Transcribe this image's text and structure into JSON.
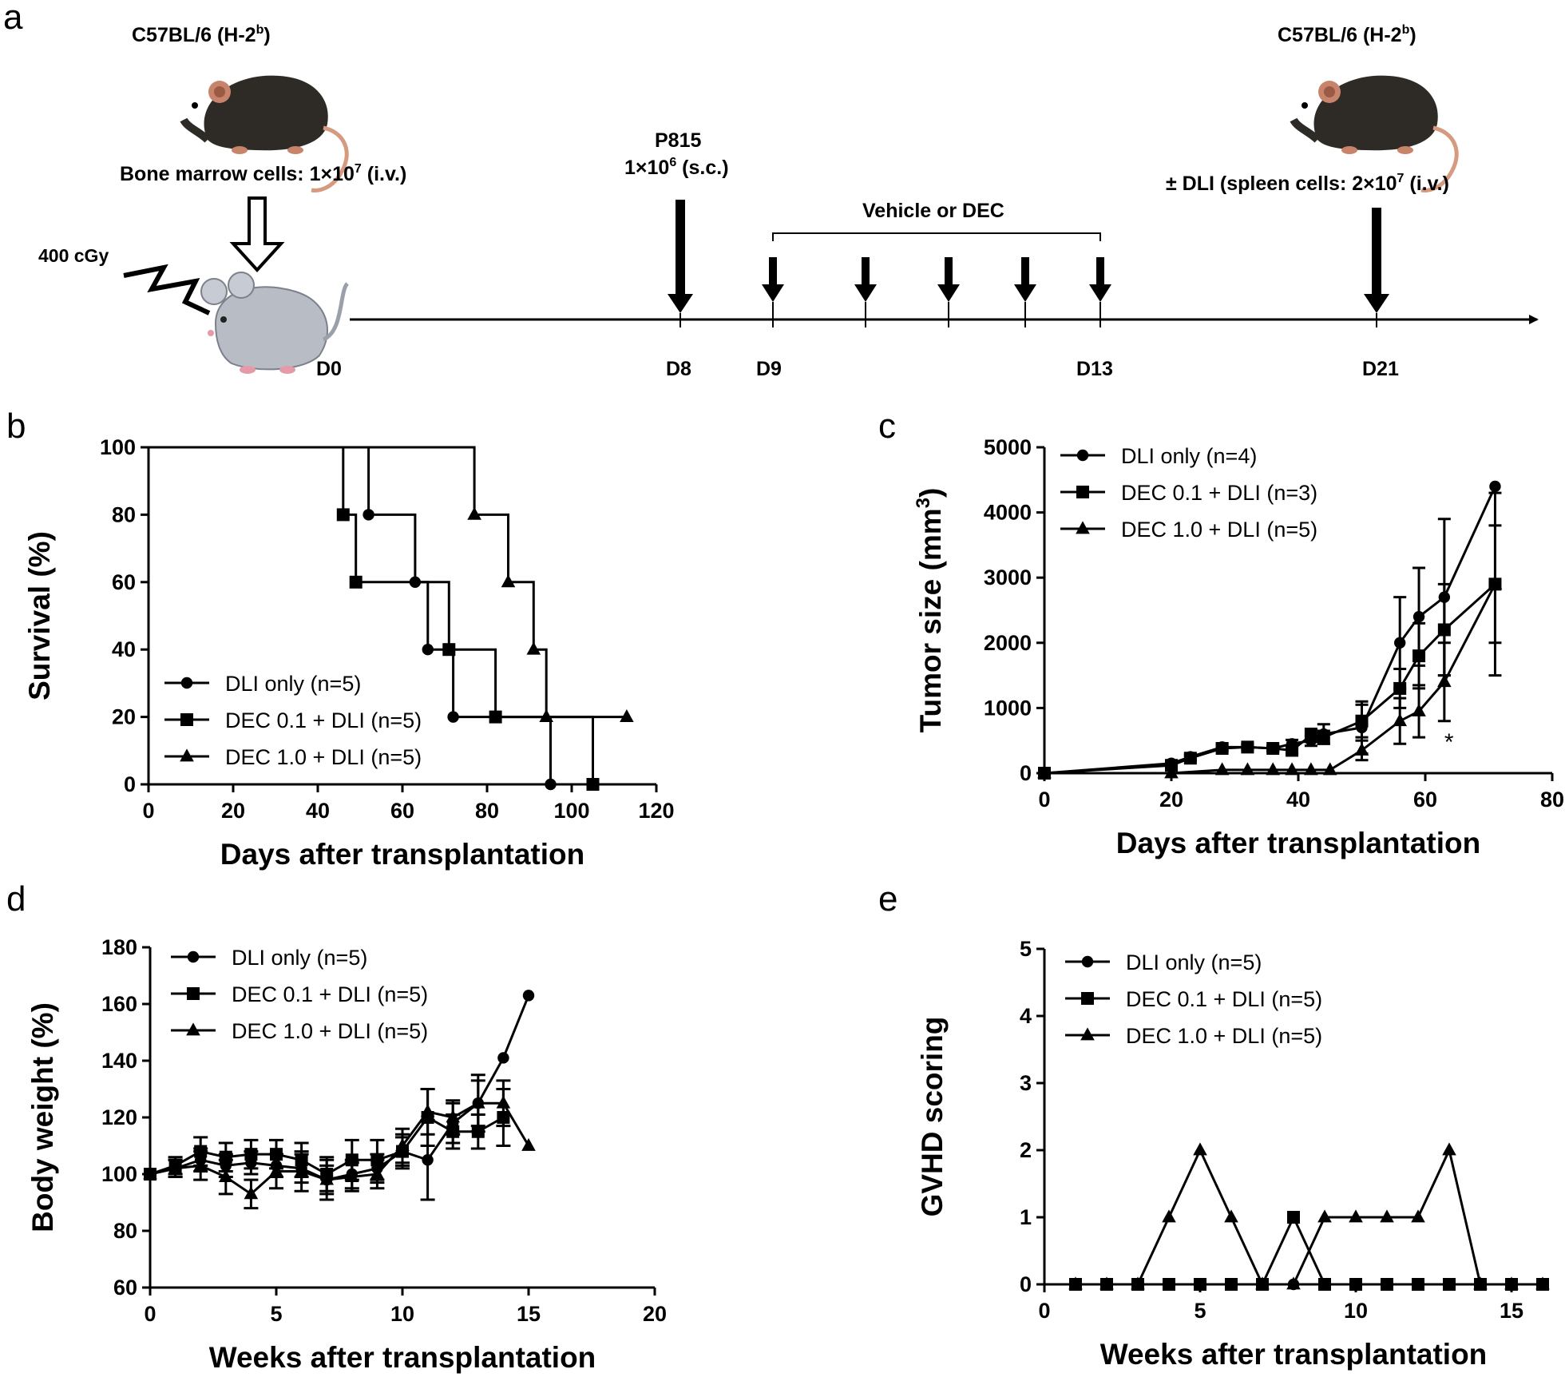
{
  "panel_labels": {
    "a": "a",
    "b": "b",
    "c": "c",
    "d": "d",
    "e": "e"
  },
  "schematic": {
    "donor_left_title": "C57BL/6 (H-2",
    "donor_left_sup": "b",
    "donor_left_close": ")",
    "bm_text_1": "Bone marrow cells: 1×10",
    "bm_sup": "7",
    "bm_text_2": " (i.v.)",
    "irradiation": "400 cGy",
    "p815_title": "P815",
    "p815_dose_1": "1×10",
    "p815_sup": "6",
    "p815_dose_2": " (s.c.)",
    "treatment": "Vehicle or DEC",
    "donor_right_title": "C57BL/6 (H-2",
    "donor_right_sup": "b",
    "donor_right_close": ")",
    "dli_text_1": "± DLI (spleen cells: 2×10",
    "dli_sup": "7",
    "dli_text_2": " (i.v.)",
    "days": [
      "D0",
      "D8",
      "D9",
      "D13",
      "D21"
    ]
  },
  "chart_data": [
    {
      "panel": "b",
      "type": "line",
      "subtype": "kaplan-meier",
      "xlabel": "Days after transplantation",
      "ylabel": "Survival (%)",
      "xlim": [
        0,
        120
      ],
      "ylim": [
        0,
        100
      ],
      "xticks": [
        0,
        20,
        40,
        60,
        80,
        100,
        120
      ],
      "yticks": [
        0,
        20,
        40,
        60,
        80,
        100
      ],
      "legend": [
        "DLI only (n=5)",
        "DEC 0.1 + DLI (n=5)",
        "DEC 1.0 + DLI (n=5)"
      ],
      "series": [
        {
          "name": "DLI only (n=5)",
          "marker": "circle",
          "steps": [
            [
              0,
              100
            ],
            [
              52,
              80
            ],
            [
              63,
              60
            ],
            [
              66,
              40
            ],
            [
              72,
              20
            ],
            [
              95,
              0
            ]
          ],
          "markers": [
            [
              52,
              80
            ],
            [
              63,
              60
            ],
            [
              66,
              40
            ],
            [
              72,
              20
            ],
            [
              95,
              0
            ]
          ]
        },
        {
          "name": "DEC 0.1 + DLI (n=5)",
          "marker": "square",
          "steps": [
            [
              0,
              100
            ],
            [
              46,
              80
            ],
            [
              49,
              60
            ],
            [
              71,
              40
            ],
            [
              82,
              20
            ],
            [
              105,
              0
            ]
          ],
          "markers": [
            [
              46,
              80
            ],
            [
              49,
              60
            ],
            [
              71,
              40
            ],
            [
              82,
              20
            ],
            [
              105,
              0
            ]
          ]
        },
        {
          "name": "DEC 1.0 + DLI (n=5)",
          "marker": "triangle",
          "steps": [
            [
              0,
              100
            ],
            [
              77,
              80
            ],
            [
              85,
              60
            ],
            [
              91,
              40
            ],
            [
              94,
              20
            ],
            [
              113,
              20
            ]
          ],
          "markers": [
            [
              77,
              80
            ],
            [
              85,
              60
            ],
            [
              91,
              40
            ],
            [
              94,
              20
            ],
            [
              113,
              20
            ]
          ]
        }
      ]
    },
    {
      "panel": "c",
      "type": "line",
      "xlabel": "Days after transplantation",
      "ylabel": "Tumor size (mm",
      "ylabel_sup": "3",
      "ylabel_close": ")",
      "xlim": [
        0,
        80
      ],
      "ylim": [
        0,
        5000
      ],
      "xticks": [
        0,
        20,
        40,
        60,
        80
      ],
      "yticks": [
        0,
        1000,
        2000,
        3000,
        4000,
        5000
      ],
      "legend": [
        "DLI only (n=4)",
        "DEC 0.1 + DLI (n=3)",
        "DEC 1.0 + DLI (n=5)"
      ],
      "annotation": {
        "text": "*",
        "x": 62,
        "y": 600
      },
      "series": [
        {
          "name": "DLI only (n=4)",
          "marker": "circle",
          "x": [
            0,
            20,
            23,
            28,
            32,
            36,
            39,
            42,
            44,
            50,
            56,
            59,
            63,
            71
          ],
          "y": [
            0,
            150,
            250,
            400,
            400,
            380,
            450,
            500,
            600,
            700,
            2000,
            2400,
            2700,
            4400
          ],
          "err": [
            0,
            30,
            40,
            50,
            40,
            40,
            60,
            80,
            150,
            400,
            700,
            750,
            1200,
            0
          ]
        },
        {
          "name": "DEC 0.1 + DLI (n=3)",
          "marker": "square",
          "x": [
            0,
            20,
            23,
            28,
            32,
            36,
            39,
            42,
            44,
            50,
            56,
            59,
            63,
            71
          ],
          "y": [
            0,
            120,
            230,
            380,
            400,
            380,
            350,
            580,
            550,
            800,
            1300,
            1800,
            2200,
            2900
          ],
          "err": [
            0,
            30,
            40,
            40,
            40,
            40,
            40,
            100,
            100,
            250,
            300,
            500,
            700,
            900
          ]
        },
        {
          "name": "DEC 1.0 + DLI (n=5)",
          "marker": "triangle",
          "x": [
            0,
            20,
            28,
            32,
            36,
            39,
            42,
            45,
            50,
            56,
            59,
            63,
            71
          ],
          "y": [
            0,
            0,
            50,
            50,
            50,
            50,
            50,
            50,
            350,
            800,
            950,
            1400,
            2900
          ],
          "err": [
            0,
            0,
            0,
            0,
            0,
            0,
            0,
            0,
            150,
            350,
            400,
            600,
            1400
          ]
        }
      ]
    },
    {
      "panel": "d",
      "type": "line",
      "xlabel": "Weeks after transplantation",
      "ylabel": "Body weight (%)",
      "xlim": [
        0,
        20
      ],
      "ylim": [
        60,
        180
      ],
      "xticks": [
        0,
        5,
        10,
        15,
        20
      ],
      "yticks": [
        60,
        80,
        100,
        120,
        140,
        160,
        180
      ],
      "legend": [
        "DLI only (n=5)",
        "DEC 0.1 + DLI (n=5)",
        "DEC 1.0 + DLI (n=5)"
      ],
      "series": [
        {
          "name": "DLI only (n=5)",
          "marker": "circle",
          "x": [
            0,
            1,
            2,
            3,
            4,
            5,
            6,
            7,
            8,
            9,
            10,
            11,
            12,
            13,
            14,
            15
          ],
          "y": [
            100,
            102,
            105,
            103,
            104,
            103,
            102,
            98,
            100,
            102,
            108,
            105,
            118,
            125,
            141,
            163
          ],
          "err": [
            0,
            3,
            4,
            4,
            4,
            4,
            5,
            5,
            5,
            5,
            5,
            14,
            7,
            8,
            0,
            0
          ]
        },
        {
          "name": "DEC 0.1 + DLI (n=5)",
          "marker": "square",
          "x": [
            0,
            1,
            2,
            3,
            4,
            5,
            6,
            7,
            8,
            9,
            10,
            11,
            12,
            13,
            14
          ],
          "y": [
            100,
            103,
            108,
            106,
            107,
            107,
            105,
            100,
            105,
            105,
            108,
            120,
            115,
            115,
            120
          ],
          "err": [
            0,
            3,
            5,
            5,
            5,
            5,
            6,
            6,
            7,
            7,
            6,
            10,
            6,
            6,
            10
          ]
        },
        {
          "name": "DEC 1.0 + DLI (n=5)",
          "marker": "triangle",
          "x": [
            0,
            1,
            2,
            3,
            4,
            5,
            6,
            7,
            8,
            9,
            10,
            11,
            12,
            13,
            14,
            15
          ],
          "y": [
            100,
            102,
            103,
            99,
            93,
            101,
            101,
            98,
            99,
            100,
            110,
            122,
            120,
            125,
            125,
            110
          ],
          "err": [
            0,
            3,
            5,
            6,
            5,
            6,
            7,
            7,
            5,
            5,
            6,
            8,
            6,
            10,
            8,
            0
          ]
        }
      ]
    },
    {
      "panel": "e",
      "type": "line",
      "xlabel": "Weeks after transplantation",
      "ylabel": "GVHD scoring",
      "xlim": [
        0,
        16
      ],
      "ylim": [
        0,
        5
      ],
      "xticks": [
        0,
        5,
        10,
        15
      ],
      "yticks": [
        0,
        1,
        2,
        3,
        4,
        5
      ],
      "legend": [
        "DLI only (n=5)",
        "DEC 0.1 + DLI (n=5)",
        "DEC 1.0 + DLI (n=5)"
      ],
      "series": [
        {
          "name": "DLI only (n=5)",
          "marker": "circle",
          "x": [
            1,
            2,
            3,
            4,
            5,
            6,
            7,
            8,
            9,
            10,
            11,
            12,
            13,
            14,
            15,
            16
          ],
          "y": [
            0,
            0,
            0,
            0,
            0,
            0,
            0,
            0,
            0,
            0,
            0,
            0,
            0,
            0,
            0,
            0
          ]
        },
        {
          "name": "DEC 0.1 + DLI (n=5)",
          "marker": "square",
          "x": [
            1,
            2,
            3,
            4,
            5,
            6,
            7,
            8,
            9,
            10,
            11,
            12,
            13,
            14,
            15,
            16
          ],
          "y": [
            0,
            0,
            0,
            0,
            0,
            0,
            0,
            1,
            0,
            0,
            0,
            0,
            0,
            0,
            0,
            0
          ]
        },
        {
          "name": "DEC 1.0 + DLI (n=5)",
          "marker": "triangle",
          "x": [
            1,
            2,
            3,
            4,
            5,
            6,
            7,
            8,
            9,
            10,
            11,
            12,
            13,
            14,
            15,
            16
          ],
          "y": [
            0,
            0,
            0,
            1,
            2,
            1,
            0,
            0,
            1,
            1,
            1,
            1,
            2,
            0,
            0,
            0
          ]
        }
      ]
    }
  ]
}
